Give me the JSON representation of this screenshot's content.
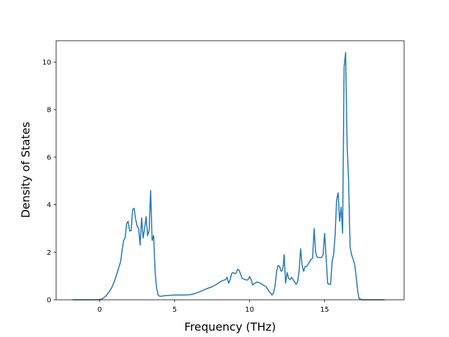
{
  "chart_data": {
    "type": "line",
    "title": "",
    "xlabel": "Frequency (THz)",
    "ylabel": "Density of States",
    "xlim": [
      -2.9,
      20.3
    ],
    "ylim": [
      0,
      10.9
    ],
    "xticks": [
      0,
      5,
      10,
      15
    ],
    "yticks": [
      0,
      2,
      4,
      6,
      8,
      10
    ],
    "grid": false,
    "legend": "none",
    "series": [
      {
        "color": "#1f77b4",
        "x": [
          -1.8,
          -1.0,
          0.0,
          0.2,
          0.4,
          0.6,
          0.8,
          1.0,
          1.2,
          1.4,
          1.5,
          1.6,
          1.7,
          1.8,
          1.9,
          2.0,
          2.1,
          2.2,
          2.3,
          2.4,
          2.5,
          2.6,
          2.7,
          2.8,
          2.9,
          3.0,
          3.1,
          3.2,
          3.3,
          3.4,
          3.5,
          3.6,
          3.7,
          3.75,
          3.8,
          3.9,
          4.0,
          4.1,
          4.2,
          4.3,
          4.5,
          5.0,
          5.5,
          6.0,
          6.3,
          6.6,
          6.9,
          7.2,
          7.5,
          7.8,
          8.1,
          8.4,
          8.5,
          8.6,
          8.7,
          8.8,
          8.9,
          9.0,
          9.1,
          9.2,
          9.3,
          9.5,
          9.7,
          9.8,
          9.9,
          10.0,
          10.1,
          10.2,
          10.3,
          10.5,
          10.7,
          10.9,
          11.1,
          11.3,
          11.4,
          11.5,
          11.6,
          11.7,
          11.8,
          11.9,
          12.0,
          12.1,
          12.2,
          12.25,
          12.3,
          12.4,
          12.5,
          12.6,
          12.7,
          12.8,
          12.9,
          13.0,
          13.1,
          13.2,
          13.3,
          13.4,
          13.5,
          13.6,
          13.7,
          13.8,
          13.9,
          14.0,
          14.1,
          14.2,
          14.3,
          14.4,
          14.5,
          14.6,
          14.7,
          14.8,
          14.9,
          15.0,
          15.1,
          15.2,
          15.3,
          15.4,
          15.5,
          15.6,
          15.7,
          15.8,
          15.9,
          16.0,
          16.1,
          16.2,
          16.3,
          16.4,
          16.5,
          16.6,
          16.7,
          16.8,
          16.9,
          17.0,
          17.1,
          17.2,
          17.3,
          17.5,
          18.0,
          19.0
        ],
        "y": [
          0,
          0,
          0,
          0.05,
          0.15,
          0.3,
          0.5,
          0.8,
          1.2,
          1.6,
          2.1,
          2.5,
          2.6,
          3.2,
          3.3,
          2.9,
          2.9,
          3.8,
          3.85,
          3.4,
          3.1,
          3.0,
          2.3,
          3.45,
          2.6,
          3.0,
          3.5,
          2.7,
          2.9,
          4.6,
          2.5,
          2.7,
          1.2,
          0.8,
          0.5,
          0.2,
          0.15,
          0.15,
          0.16,
          0.17,
          0.18,
          0.2,
          0.2,
          0.21,
          0.25,
          0.32,
          0.4,
          0.48,
          0.55,
          0.65,
          0.78,
          0.85,
          0.95,
          0.7,
          0.85,
          1.1,
          1.15,
          1.1,
          1.12,
          1.28,
          1.25,
          0.9,
          0.85,
          0.83,
          0.85,
          0.98,
          0.85,
          0.62,
          0.68,
          0.75,
          0.7,
          0.62,
          0.55,
          0.35,
          0.28,
          0.2,
          0.3,
          0.6,
          1.2,
          1.45,
          1.4,
          1.2,
          1.25,
          1.5,
          1.9,
          0.7,
          1.15,
          0.9,
          0.85,
          0.95,
          0.85,
          0.75,
          0.65,
          0.75,
          1.2,
          2.15,
          1.45,
          1.2,
          1.4,
          1.4,
          1.5,
          1.6,
          1.7,
          1.75,
          3.0,
          2.0,
          1.8,
          1.78,
          1.78,
          1.78,
          1.9,
          2.8,
          1.8,
          0.7,
          0.65,
          0.65,
          1.6,
          1.9,
          2.7,
          4.2,
          4.5,
          3.3,
          3.9,
          2.8,
          9.8,
          10.4,
          6.5,
          5.0,
          2.2,
          1.9,
          1.7,
          1.5,
          1.0,
          0.4,
          0.05,
          0,
          0,
          0
        ]
      }
    ]
  }
}
